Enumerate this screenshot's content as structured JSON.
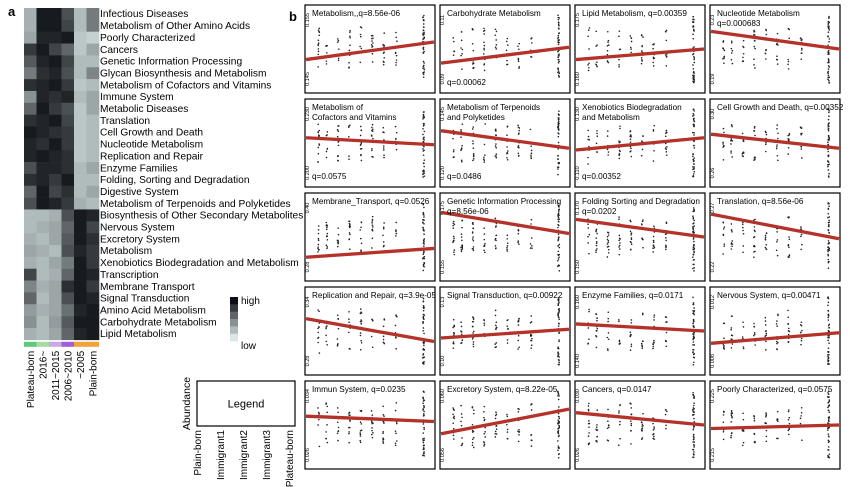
{
  "figure": {
    "panel_a_letter": "a",
    "panel_b_letter": "b"
  },
  "colors": {
    "regression_line": "#b5322a",
    "points": "#222222",
    "heat_high": "#0d0f14",
    "heat_low": "#d9e6e6",
    "group_bar": [
      "#5fc77a",
      "#a7d9a3",
      "#c9a8e8",
      "#a05fd6",
      "#f0a33a"
    ]
  },
  "chart_data": [
    {
      "type": "heatmap",
      "rows": [
        "Infectious Diseases",
        "Metabolism of Other Amino Acids",
        "Poorly Characterized",
        "Cancers",
        "Genetic Information Processing",
        "Glycan Biosynthesis and Metabolism",
        "Metabolism of Cofactors and Vitamins",
        "Immune System",
        "Metabolic Diseases",
        "Translation",
        "Cell Growth and Death",
        "Nucleotide Metabolism",
        "Replication and Repair",
        "Enzyme Families",
        "Folding, Sorting and Degradation",
        "Digestive System",
        "Metabolism of Terpenoids and Polyketides",
        "Biosynthesis of Other Secondary Metabolites",
        "Nervous System",
        "Excretory System",
        "Metabolism",
        "Xenobiotics Biodegradation and Metabolism",
        "Transcription",
        "Membrane Transport",
        "Signal Transduction",
        "Amino Acid Metabolism",
        "Carbohydrate Metabolism",
        "Lipid Metabolism"
      ],
      "columns": [
        "Plateau-born",
        "2016~",
        "2011~2015",
        "2006~2010",
        "~2005",
        "Plain-born"
      ],
      "values": [
        [
          0.25,
          0.95,
          0.95,
          0.7,
          0.2,
          0.5
        ],
        [
          0.25,
          0.95,
          0.95,
          0.75,
          0.2,
          0.5
        ],
        [
          0.3,
          0.9,
          0.9,
          0.95,
          0.15,
          0.1
        ],
        [
          0.8,
          0.95,
          0.75,
          0.6,
          0.15,
          0.3
        ],
        [
          0.65,
          0.9,
          0.95,
          0.75,
          0.2,
          0.2
        ],
        [
          0.5,
          0.85,
          0.9,
          0.7,
          0.2,
          0.45
        ],
        [
          0.85,
          0.9,
          0.95,
          0.8,
          0.15,
          0.2
        ],
        [
          0.4,
          0.9,
          0.85,
          0.9,
          0.2,
          0.3
        ],
        [
          0.6,
          0.95,
          0.8,
          0.7,
          0.15,
          0.3
        ],
        [
          0.85,
          0.9,
          0.95,
          0.75,
          0.15,
          0.2
        ],
        [
          0.95,
          0.9,
          0.85,
          0.8,
          0.15,
          0.2
        ],
        [
          0.9,
          0.85,
          0.95,
          0.8,
          0.15,
          0.2
        ],
        [
          0.9,
          0.95,
          0.9,
          0.85,
          0.15,
          0.2
        ],
        [
          0.7,
          0.9,
          0.9,
          0.85,
          0.2,
          0.3
        ],
        [
          0.85,
          0.9,
          0.8,
          0.95,
          0.2,
          0.2
        ],
        [
          0.6,
          0.95,
          0.75,
          0.85,
          0.2,
          0.3
        ],
        [
          0.7,
          0.95,
          0.9,
          0.8,
          0.25,
          0.2
        ],
        [
          0.2,
          0.2,
          0.25,
          0.7,
          0.95,
          0.9
        ],
        [
          0.2,
          0.25,
          0.3,
          0.6,
          0.95,
          0.75
        ],
        [
          0.25,
          0.2,
          0.3,
          0.65,
          0.95,
          0.85
        ],
        [
          0.3,
          0.25,
          0.2,
          0.7,
          0.9,
          0.8
        ],
        [
          0.25,
          0.2,
          0.3,
          0.5,
          0.95,
          0.8
        ],
        [
          0.75,
          0.2,
          0.25,
          0.6,
          0.95,
          0.9
        ],
        [
          0.45,
          0.25,
          0.3,
          0.85,
          0.95,
          0.8
        ],
        [
          0.6,
          0.2,
          0.3,
          0.7,
          0.95,
          0.9
        ],
        [
          0.35,
          0.25,
          0.3,
          0.55,
          0.9,
          0.95
        ],
        [
          0.4,
          0.2,
          0.35,
          0.65,
          0.95,
          0.95
        ],
        [
          0.25,
          0.2,
          0.3,
          0.6,
          0.9,
          0.95
        ]
      ],
      "colorbar": {
        "high_label": "high",
        "low_label": "low"
      }
    },
    {
      "type": "legend",
      "title": "Legend",
      "ylabel": "Abundance",
      "categories": [
        "Plain-born",
        "Immigrant1",
        "Immigrant2",
        "Immigrant3",
        "Plateau-born"
      ]
    },
    {
      "type": "scatter",
      "panels": [
        {
          "title": "Metabolism,,q=8.56e-06",
          "ylim": [
            0.145,
            0.155
          ],
          "yticks": [
            "0.145",
            "0.155"
          ],
          "line": [
            0.62,
            0.42
          ]
        },
        {
          "title": "Carbohydrate Metabolism",
          "qlabel": "q=0.00062",
          "ylim": [
            0.09,
            0.11
          ],
          "yticks": [
            "0.09",
            "0.11"
          ],
          "line": [
            0.66,
            0.48
          ]
        },
        {
          "title": "Lipid Metabolism, q=0.00359",
          "ylim": [
            0.16,
            0.175
          ],
          "yticks": [
            "0.160",
            "0.175"
          ],
          "line": [
            0.62,
            0.5
          ]
        },
        {
          "title": "Nucleotide Metabolism",
          "qlabel": "q=0.000683",
          "ylim": [
            0.19,
            0.23
          ],
          "yticks": [
            "0.19",
            "0.23"
          ],
          "line": [
            0.3,
            0.5
          ]
        },
        {
          "title": "Metabolism of\nCofactors and Vitamins",
          "qlabel": "q=0.0575",
          "ylim": [
            0.2,
            0.23
          ],
          "yticks": [
            "0.200",
            "0.230"
          ],
          "line": [
            0.44,
            0.52
          ]
        },
        {
          "title": "Metabolism of Terpenoids\nand Polyketides",
          "qlabel": "q=0.0486",
          "ylim": [
            0.12,
            0.145
          ],
          "yticks": [
            "0.120",
            "0.145"
          ],
          "line": [
            0.36,
            0.56
          ]
        },
        {
          "title": "Xenobiotics Biodegradation\nand Metabolism",
          "qlabel": "q=0.00352",
          "ylim": [
            0.11,
            0.13
          ],
          "yticks": [
            "0.110",
            "0.130"
          ],
          "line": [
            0.58,
            0.44
          ]
        },
        {
          "title": "Cell Growth and Death, q=0.00352",
          "ylim": [
            0.26,
            0.3
          ],
          "yticks": [
            "0.26",
            "0.30"
          ],
          "line": [
            0.4,
            0.56
          ]
        },
        {
          "title": "Membrane_Transport, q=0.0526",
          "ylim": [
            0.28,
            0.4
          ],
          "yticks": [
            "0.28",
            "0.40"
          ],
          "line": [
            0.73,
            0.63
          ]
        },
        {
          "title": "Genetic Information Processing",
          "qlabel": "q=8.56e-06",
          "ylim": [
            0.155,
            0.175
          ],
          "yticks": [
            "0.155",
            "0.175"
          ],
          "line": [
            0.22,
            0.46
          ]
        },
        {
          "title": "Folding Sorting and Degradation",
          "qlabel": "q=0.0202",
          "ylim": [
            0.15,
            0.17
          ],
          "yticks": [
            "0.150",
            "0.170"
          ],
          "line": [
            0.3,
            0.5
          ]
        },
        {
          "title": "Translation, q=8.56e-06",
          "ylim": [
            0.22,
            0.27
          ],
          "yticks": [
            "0.22",
            "0.27"
          ],
          "line": [
            0.24,
            0.52
          ]
        },
        {
          "title": "Replication and Repair, q=3.9e-05",
          "ylim": [
            0.28,
            0.34
          ],
          "yticks": [
            "0.28",
            "0.34"
          ],
          "line": [
            0.36,
            0.62
          ]
        },
        {
          "title": "Signal Transduction, q=0.00922",
          "ylim": [
            0.1,
            0.13
          ],
          "yticks": [
            "0.10",
            "0.13"
          ],
          "line": [
            0.58,
            0.48
          ]
        },
        {
          "title": "Enzyme Families, q=0.0171",
          "ylim": [
            0.14,
            0.16
          ],
          "yticks": [
            "0.140",
            "0.160"
          ],
          "line": [
            0.42,
            0.5
          ]
        },
        {
          "title": "Nervous System, q=0.00471",
          "ylim": [
            0.008,
            0.012
          ],
          "yticks": [
            "0.008",
            "0.012"
          ],
          "line": [
            0.64,
            0.52
          ]
        },
        {
          "title": "Immun System, q=0.0235",
          "ylim": [
            0.026,
            0.034
          ],
          "yticks": [
            "0.026",
            "0.034"
          ],
          "line": [
            0.4,
            0.46
          ]
        },
        {
          "title": "Excretory System, q=8.22e-05",
          "ylim": [
            0.056,
            0.06
          ],
          "yticks": [
            "0.056",
            "0.060"
          ],
          "line": [
            0.6,
            0.32
          ]
        },
        {
          "title": "Cancers, q=0.0147",
          "ylim": [
            0.026,
            0.03
          ],
          "yticks": [
            "0.026",
            "0.030"
          ],
          "line": [
            0.36,
            0.5
          ]
        },
        {
          "title": "Poorly Characterized, q=0.0575",
          "ylim": [
            0.215,
            0.225
          ],
          "yticks": [
            "0.215",
            "0.225"
          ],
          "line": [
            0.54,
            0.5
          ]
        }
      ]
    }
  ]
}
